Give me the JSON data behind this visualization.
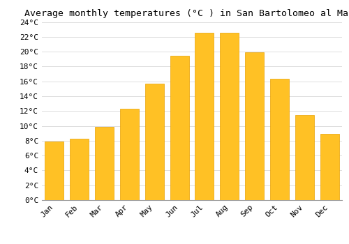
{
  "title": "Average monthly temperatures (°C ) in San Bartolomeo al Mare",
  "months": [
    "Jan",
    "Feb",
    "Mar",
    "Apr",
    "May",
    "Jun",
    "Jul",
    "Aug",
    "Sep",
    "Oct",
    "Nov",
    "Dec"
  ],
  "values": [
    7.9,
    8.3,
    9.9,
    12.3,
    15.7,
    19.4,
    22.5,
    22.5,
    19.9,
    16.3,
    11.5,
    8.9
  ],
  "bar_color": "#FFC125",
  "bar_edge_color": "#E8A000",
  "background_color": "#FFFFFF",
  "grid_color": "#DDDDDD",
  "ylim": [
    0,
    24
  ],
  "ytick_step": 2,
  "title_fontsize": 9.5,
  "tick_fontsize": 8,
  "font_family": "monospace",
  "bar_width": 0.75
}
